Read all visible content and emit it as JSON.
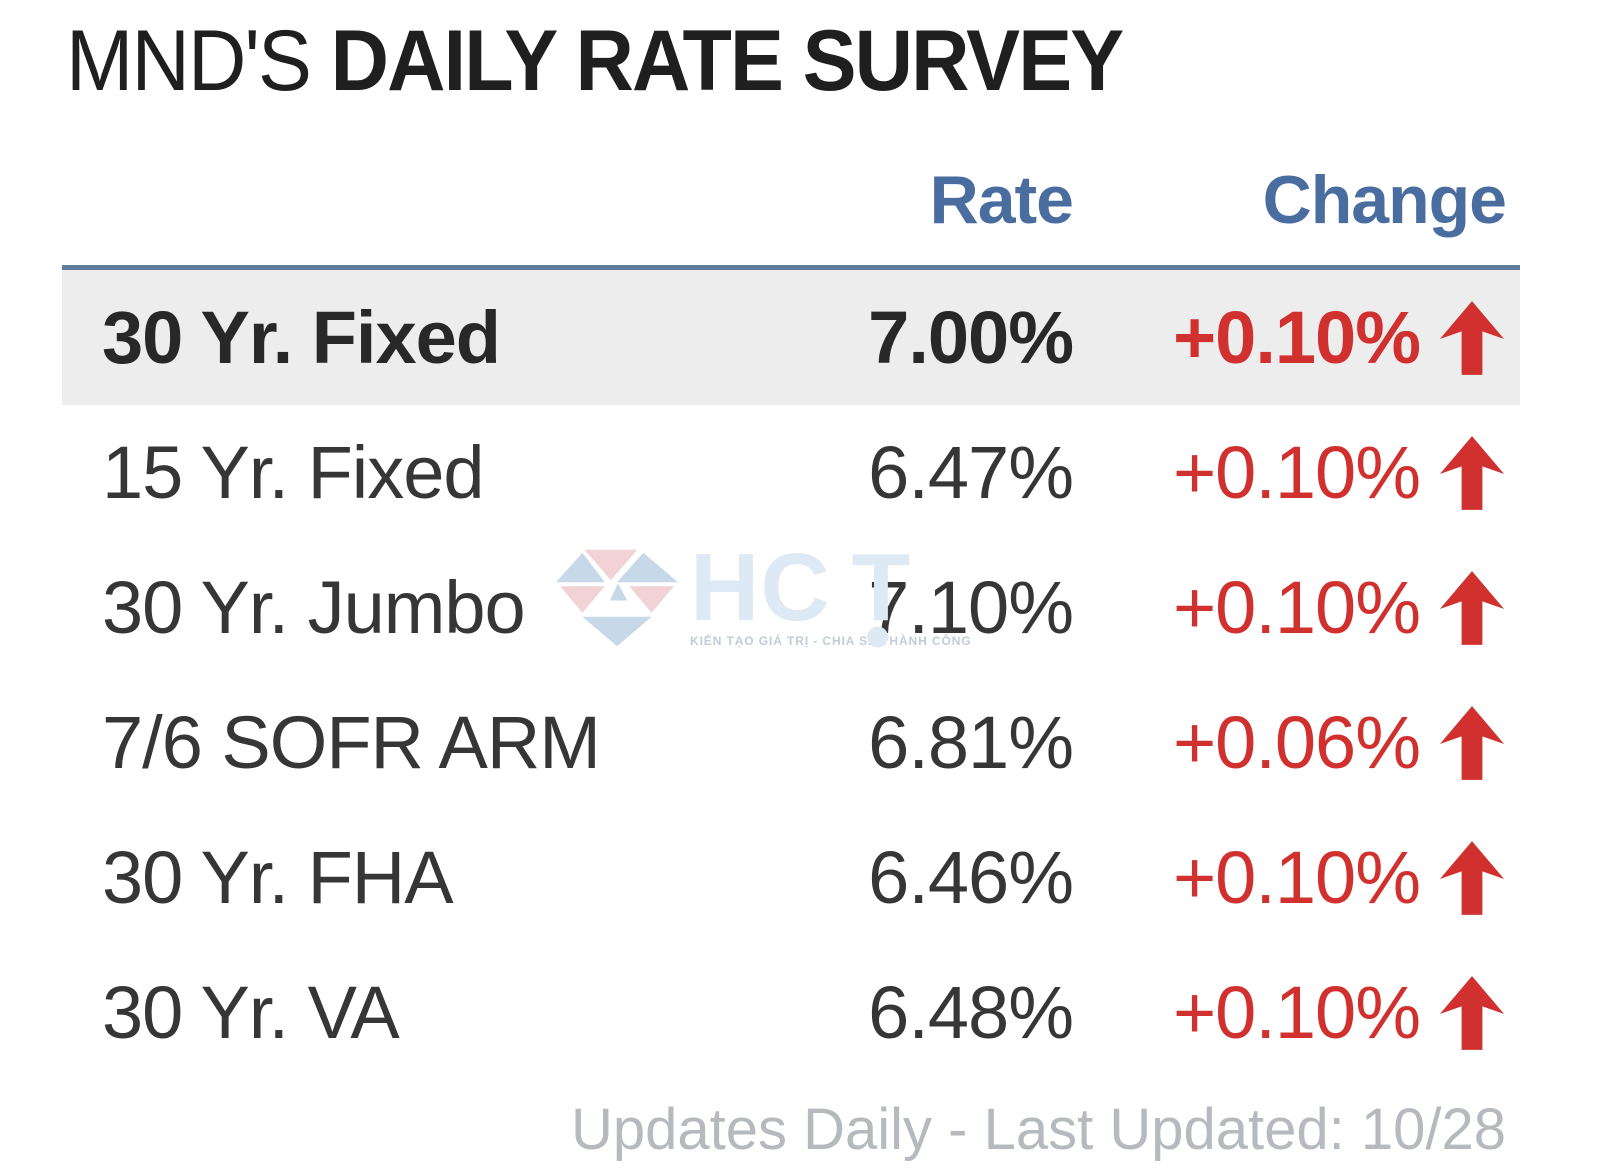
{
  "title": {
    "prefix": "MND'S",
    "main": "DAILY RATE SURVEY"
  },
  "table": {
    "headers": {
      "loan_type": "",
      "rate": "Rate",
      "change": "Change"
    },
    "rows": [
      {
        "label": "30 Yr. Fixed",
        "rate": "7.00%",
        "change": "+0.10%",
        "direction": "up",
        "highlight": true
      },
      {
        "label": "15 Yr. Fixed",
        "rate": "6.47%",
        "change": "+0.10%",
        "direction": "up",
        "highlight": false
      },
      {
        "label": "30 Yr. Jumbo",
        "rate": "7.10%",
        "change": "+0.10%",
        "direction": "up",
        "highlight": false
      },
      {
        "label": "7/6 SOFR ARM",
        "rate": "6.81%",
        "change": "+0.06%",
        "direction": "up",
        "highlight": false
      },
      {
        "label": "30 Yr. FHA",
        "rate": "6.46%",
        "change": "+0.10%",
        "direction": "up",
        "highlight": false
      },
      {
        "label": "30 Yr. VA",
        "rate": "6.48%",
        "change": "+0.10%",
        "direction": "up",
        "highlight": false
      }
    ]
  },
  "footer": {
    "text": "Updates Daily - Last Updated: 10/28"
  },
  "watermark": {
    "name": "HCT",
    "tagline": "KIẾN TẠO GIÁ TRỊ - CHIA SẺ THÀNH CÔNG"
  },
  "colors": {
    "text_dark": "#1f1f1f",
    "header_blue": "#4a6d9f",
    "divider_blue": "#5e7b9c",
    "highlight_bg": "#ededee",
    "change_red": "#d0312f",
    "footer_gray": "#b6b9be",
    "watermark_blue": "#c7d8e9",
    "watermark_pink": "#f3d2d6",
    "watermark_text": "#dde9f4"
  },
  "chart_data": {
    "type": "table",
    "title": "MND'S DAILY RATE SURVEY",
    "columns": [
      "",
      "Rate",
      "Change"
    ],
    "rows": [
      [
        "30 Yr. Fixed",
        "7.00%",
        "+0.10%"
      ],
      [
        "15 Yr. Fixed",
        "6.47%",
        "+0.10%"
      ],
      [
        "30 Yr. Jumbo",
        "7.10%",
        "+0.10%"
      ],
      [
        "7/6 SOFR ARM",
        "6.81%",
        "+0.06%"
      ],
      [
        "30 Yr. FHA",
        "6.46%",
        "+0.10%"
      ],
      [
        "30 Yr. VA",
        "6.48%",
        "+0.10%"
      ]
    ],
    "rates_numeric": [
      7.0,
      6.47,
      7.1,
      6.81,
      6.46,
      6.48
    ],
    "changes_numeric": [
      0.1,
      0.1,
      0.1,
      0.06,
      0.1,
      0.1
    ],
    "change_direction_all": "up",
    "highlighted_row": "30 Yr. Fixed",
    "footnote": "Updates Daily - Last Updated: 10/28",
    "legend_position": "none",
    "grid": false
  }
}
